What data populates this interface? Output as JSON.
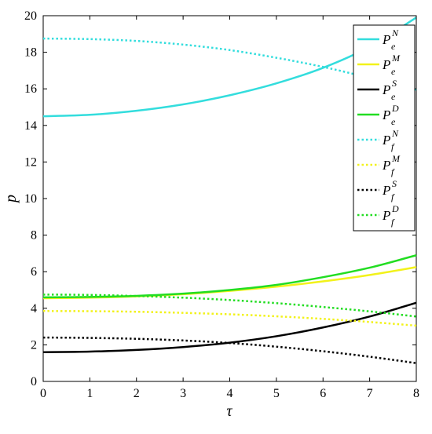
{
  "chart_data": {
    "type": "line",
    "xlabel": "τ",
    "ylabel": "p",
    "xlim": [
      0,
      8
    ],
    "ylim": [
      0,
      20
    ],
    "x_ticks": [
      0,
      1,
      2,
      3,
      4,
      5,
      6,
      7,
      8
    ],
    "y_ticks": [
      0,
      2,
      4,
      6,
      8,
      10,
      12,
      14,
      16,
      18,
      20
    ],
    "grid": false,
    "legend_position": "top-right",
    "x": [
      0,
      1,
      2,
      3,
      4,
      5,
      6,
      7,
      8
    ],
    "series": [
      {
        "name": "P_e^N",
        "sym": "P",
        "sub": "e",
        "sup": "N",
        "color": "#33dddd",
        "dash": "solid",
        "values": [
          14.5,
          14.58,
          14.8,
          15.15,
          15.65,
          16.3,
          17.15,
          18.3,
          19.9
        ]
      },
      {
        "name": "P_e^M",
        "sym": "P",
        "sub": "e",
        "sup": "M",
        "color": "#f2f21a",
        "dash": "solid",
        "values": [
          4.55,
          4.58,
          4.65,
          4.77,
          4.95,
          5.18,
          5.47,
          5.82,
          6.25
        ]
      },
      {
        "name": "P_e^S",
        "sym": "P",
        "sub": "e",
        "sup": "S",
        "color": "#000000",
        "dash": "solid",
        "values": [
          1.6,
          1.63,
          1.72,
          1.88,
          2.12,
          2.47,
          2.95,
          3.55,
          4.3
        ]
      },
      {
        "name": "P_e^D",
        "sym": "P",
        "sub": "e",
        "sup": "D",
        "color": "#22dd22",
        "dash": "solid",
        "values": [
          4.6,
          4.62,
          4.68,
          4.8,
          5.0,
          5.28,
          5.7,
          6.22,
          6.9
        ]
      },
      {
        "name": "P_f^N",
        "sym": "P",
        "sub": "f",
        "sup": "N",
        "color": "#33dddd",
        "dash": "dotted",
        "values": [
          18.75,
          18.72,
          18.62,
          18.42,
          18.12,
          17.7,
          17.2,
          16.6,
          15.95
        ]
      },
      {
        "name": "P_f^M",
        "sym": "P",
        "sub": "f",
        "sup": "M",
        "color": "#f2f21a",
        "dash": "dotted",
        "values": [
          3.85,
          3.84,
          3.81,
          3.75,
          3.67,
          3.56,
          3.42,
          3.25,
          3.05
        ]
      },
      {
        "name": "P_f^S",
        "sym": "P",
        "sub": "f",
        "sup": "S",
        "color": "#000000",
        "dash": "dotted",
        "values": [
          2.4,
          2.38,
          2.33,
          2.24,
          2.1,
          1.9,
          1.65,
          1.35,
          1.0
        ]
      },
      {
        "name": "P_f^D",
        "sym": "P",
        "sub": "f",
        "sup": "D",
        "color": "#22dd22",
        "dash": "dotted",
        "values": [
          4.75,
          4.73,
          4.67,
          4.58,
          4.45,
          4.28,
          4.07,
          3.83,
          3.55
        ]
      }
    ]
  }
}
